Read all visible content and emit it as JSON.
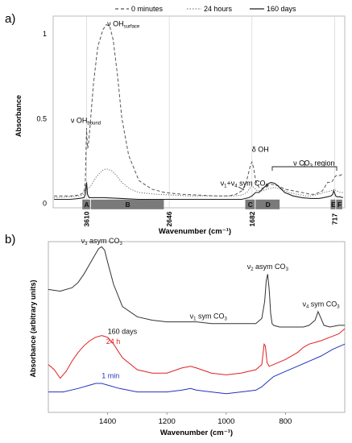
{
  "figure": {
    "panel_a_label": "a)",
    "panel_b_label": "b)"
  },
  "chart_data": [
    {
      "type": "line",
      "panel": "a)",
      "xlabel": "Wavenumber (cm⁻¹)",
      "ylabel": "Absorbance",
      "x_tick_labels": [
        "3610",
        "2646",
        "1682",
        "717"
      ],
      "y_tick_labels": [
        "0",
        "0.5",
        "1"
      ],
      "x_ticks": [
        3610,
        2646,
        1682,
        717
      ],
      "y_ticks": [
        0,
        0.5,
        1
      ],
      "xlim": [
        4000,
        600
      ],
      "ylim": [
        -0.03,
        1.1
      ],
      "x_reversed": true,
      "legend_position": "top",
      "series": [
        {
          "name": "0 minutes",
          "style": "dashed",
          "color": "#555555",
          "x": [
            3990,
            3800,
            3700,
            3640,
            3625,
            3615,
            3610,
            3605,
            3598,
            3590,
            3570,
            3530,
            3480,
            3420,
            3380,
            3340,
            3300,
            3250,
            3200,
            3120,
            3000,
            2850,
            2700,
            2500,
            2300,
            2100,
            1950,
            1870,
            1800,
            1760,
            1720,
            1700,
            1682,
            1660,
            1640,
            1600,
            1560,
            1500,
            1460,
            1420,
            1380,
            1300,
            1200,
            1100,
            1000,
            950,
            900,
            860,
            800,
            760,
            740,
            720,
            700,
            660,
            620
          ],
          "y": [
            0.04,
            0.04,
            0.045,
            0.06,
            0.12,
            0.35,
            0.44,
            0.37,
            0.32,
            0.34,
            0.45,
            0.7,
            0.92,
            1.02,
            1.05,
            1.04,
            0.96,
            0.75,
            0.5,
            0.28,
            0.13,
            0.08,
            0.06,
            0.05,
            0.045,
            0.04,
            0.04,
            0.05,
            0.07,
            0.1,
            0.18,
            0.22,
            0.24,
            0.2,
            0.13,
            0.09,
            0.085,
            0.1,
            0.11,
            0.105,
            0.1,
            0.08,
            0.07,
            0.06,
            0.05,
            0.05,
            0.06,
            0.07,
            0.12,
            0.12,
            0.13,
            0.15,
            0.16,
            0.16,
            0.17
          ]
        },
        {
          "name": "24 hours",
          "style": "dotted",
          "color": "#666666",
          "x": [
            3990,
            3800,
            3700,
            3640,
            3620,
            3610,
            3600,
            3560,
            3500,
            3430,
            3380,
            3320,
            3260,
            3200,
            3100,
            3000,
            2800,
            2600,
            2400,
            2200,
            2000,
            1900,
            1800,
            1740,
            1700,
            1682,
            1660,
            1620,
            1560,
            1500,
            1420,
            1340,
            1250,
            1150,
            1050,
            1000,
            950,
            900,
            850,
            800,
            760,
            740,
            720,
            700,
            650,
            620
          ],
          "y": [
            0.03,
            0.035,
            0.04,
            0.05,
            0.1,
            0.11,
            0.08,
            0.1,
            0.15,
            0.19,
            0.2,
            0.19,
            0.16,
            0.12,
            0.08,
            0.06,
            0.05,
            0.045,
            0.04,
            0.04,
            0.04,
            0.04,
            0.045,
            0.06,
            0.09,
            0.1,
            0.09,
            0.07,
            0.07,
            0.08,
            0.09,
            0.08,
            0.06,
            0.05,
            0.04,
            0.04,
            0.045,
            0.05,
            0.06,
            0.065,
            0.07,
            0.075,
            0.08,
            0.07,
            0.06,
            0.06
          ]
        },
        {
          "name": "160 days",
          "style": "solid",
          "color": "#222222",
          "x": [
            3990,
            3800,
            3700,
            3640,
            3625,
            3615,
            3610,
            3600,
            3580,
            3500,
            3400,
            3200,
            3000,
            2700,
            2400,
            2100,
            1900,
            1800,
            1720,
            1682,
            1640,
            1600,
            1560,
            1500,
            1460,
            1420,
            1380,
            1300,
            1200,
            1100,
            1000,
            900,
            850,
            800,
            760,
            740,
            730,
            720,
            705,
            690,
            660,
            620
          ],
          "y": [
            0.02,
            0.02,
            0.025,
            0.03,
            0.05,
            0.1,
            0.12,
            0.05,
            0.03,
            0.03,
            0.03,
            0.025,
            0.02,
            0.02,
            0.02,
            0.02,
            0.02,
            0.02,
            0.03,
            0.04,
            0.06,
            0.06,
            0.08,
            0.11,
            0.12,
            0.115,
            0.1,
            0.06,
            0.04,
            0.03,
            0.025,
            0.025,
            0.03,
            0.035,
            0.04,
            0.05,
            0.07,
            0.06,
            0.04,
            0.035,
            0.035,
            0.03
          ]
        }
      ],
      "regions": [
        {
          "label": "A",
          "x_start": 3660,
          "x_end": 3560
        },
        {
          "label": "B",
          "x_start": 3560,
          "x_end": 2700
        },
        {
          "label": "C",
          "x_start": 1760,
          "x_end": 1640
        },
        {
          "label": "D",
          "x_start": 1640,
          "x_end": 1350
        },
        {
          "label": "E",
          "x_start": 765,
          "x_end": 700
        },
        {
          "label": "F",
          "x_start": 700,
          "x_end": 620
        }
      ],
      "annotations": [
        {
          "text": "ν OH",
          "sub": "bound",
          "x": 3620,
          "y": 0.47
        },
        {
          "text": "ν OH",
          "sub": "surface",
          "x": 3370,
          "y": 1.04
        },
        {
          "text": "δ OH",
          "x": 1682,
          "y": 0.3
        },
        {
          "text": "ν CO",
          "sub": "3",
          "suffix": " region",
          "x": 1200,
          "y": 0.22
        },
        {
          "text": "ν",
          "sub": "1",
          "mid": "+ν",
          "sub2": "4",
          "suffix": " sym CO",
          "sub3": "3",
          "x": 2050,
          "y": 0.1
        }
      ]
    },
    {
      "type": "line",
      "panel": "b)",
      "xlabel": "Wavenumber (cm⁻¹)",
      "ylabel": "Absorbance (arbitrary units)",
      "x_tick_labels": [
        "1400",
        "1200",
        "1000",
        "800"
      ],
      "x_ticks": [
        1400,
        1200,
        1000,
        800
      ],
      "xlim": [
        1600,
        600
      ],
      "ylim": [
        0,
        100
      ],
      "x_reversed": true,
      "series": [
        {
          "name": "160 days",
          "color": "#333333",
          "x": [
            1600,
            1560,
            1520,
            1500,
            1480,
            1460,
            1440,
            1430,
            1420,
            1410,
            1400,
            1380,
            1350,
            1300,
            1250,
            1200,
            1150,
            1100,
            1050,
            1000,
            950,
            900,
            880,
            870,
            865,
            860,
            855,
            850,
            845,
            840,
            820,
            780,
            740,
            720,
            700,
            690,
            680,
            670,
            650,
            620,
            600
          ],
          "y": [
            72,
            71,
            73,
            76,
            81,
            87,
            93,
            96,
            97,
            95,
            88,
            75,
            62,
            56,
            54,
            53,
            53,
            53,
            52,
            52,
            52,
            52,
            55,
            65,
            77,
            81,
            72,
            58,
            52,
            51,
            50,
            50,
            50,
            51,
            54,
            59,
            55,
            51,
            50,
            51,
            51
          ]
        },
        {
          "name": "24 h",
          "color": "#e02020",
          "x": [
            1600,
            1580,
            1560,
            1540,
            1520,
            1500,
            1480,
            1460,
            1440,
            1420,
            1400,
            1380,
            1350,
            1300,
            1250,
            1200,
            1150,
            1120,
            1100,
            1050,
            1000,
            950,
            900,
            880,
            872,
            868,
            862,
            855,
            840,
            800,
            760,
            740,
            720,
            700,
            680,
            650,
            620,
            600
          ],
          "y": [
            28,
            25,
            20,
            24,
            30,
            35,
            39,
            42,
            44,
            45,
            44,
            40,
            32,
            25,
            23,
            23,
            26,
            27,
            26,
            23,
            22,
            23,
            25,
            28,
            40,
            39,
            29,
            27,
            28,
            31,
            35,
            38,
            40,
            41,
            42,
            44,
            46,
            49
          ]
        },
        {
          "name": "1 min",
          "color": "#2233bb",
          "x": [
            1600,
            1550,
            1500,
            1460,
            1440,
            1420,
            1400,
            1360,
            1300,
            1250,
            1200,
            1150,
            1120,
            1100,
            1050,
            1000,
            950,
            900,
            880,
            860,
            840,
            800,
            760,
            720,
            680,
            640,
            600
          ],
          "y": [
            12,
            12,
            14,
            16,
            17,
            17,
            16,
            14,
            12,
            12,
            12,
            13,
            14,
            13,
            12,
            11,
            12,
            13,
            15,
            18,
            21,
            24,
            27,
            30,
            33,
            37,
            40
          ]
        }
      ],
      "annotations": [
        {
          "text": "ν",
          "sub": "3",
          "suffix": " asym CO",
          "sub2": "3",
          "x": 1420,
          "y": 99,
          "anchor": "middle"
        },
        {
          "text": "ν",
          "sub": "2",
          "suffix": " asym CO",
          "sub2": "3",
          "x": 860,
          "y": 84,
          "anchor": "middle"
        },
        {
          "text": "ν",
          "sub": "1",
          "suffix": " sym CO",
          "sub2": "3",
          "x": 1060,
          "y": 55,
          "anchor": "middle"
        },
        {
          "text": "ν",
          "sub": "4",
          "suffix": " sym CO",
          "sub2": "3",
          "x": 680,
          "y": 62,
          "anchor": "middle"
        },
        {
          "text": "160 days",
          "x": 1400,
          "y": 46,
          "anchor": "start",
          "color": "#111111"
        },
        {
          "text": "24 h",
          "x": 1405,
          "y": 40,
          "anchor": "start",
          "color": "#e02020"
        },
        {
          "text": "1 min",
          "x": 1420,
          "y": 20,
          "anchor": "start",
          "color": "#2233bb"
        }
      ]
    }
  ]
}
